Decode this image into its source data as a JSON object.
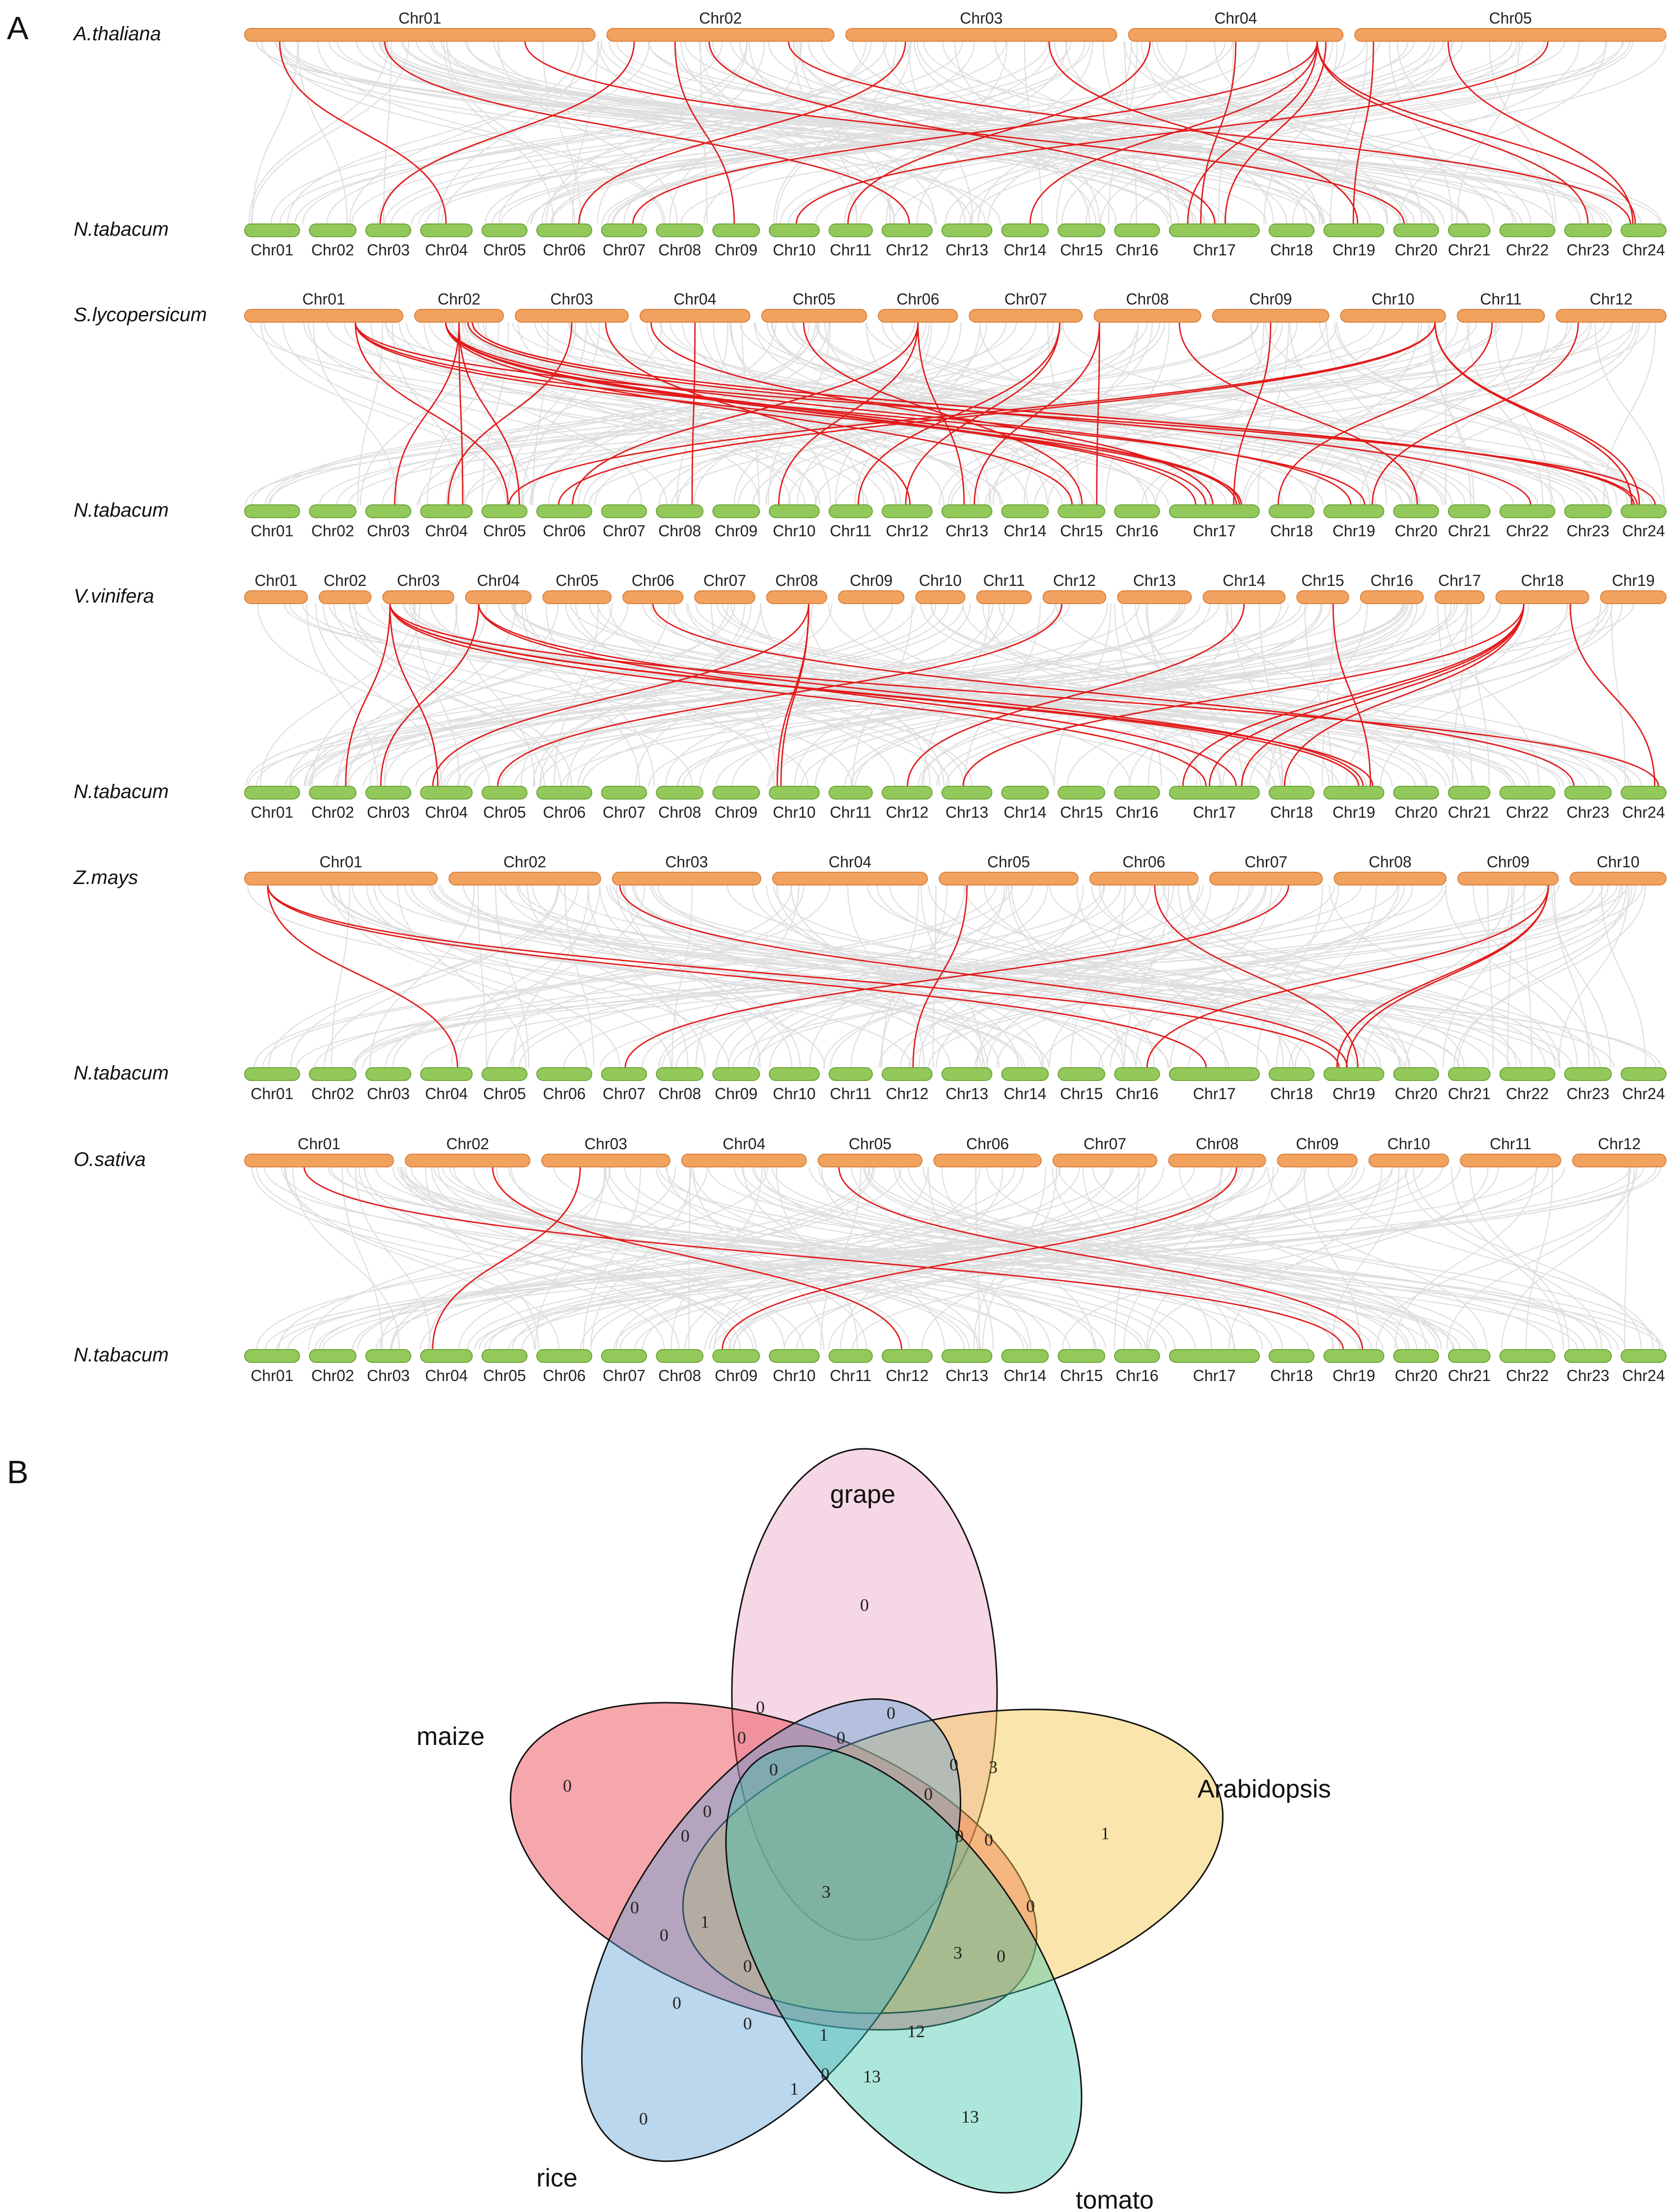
{
  "panel_a": {
    "letter": "A",
    "target_species": "N.tabacum",
    "target_chromosomes": [
      "Chr01",
      "Chr02",
      "Chr03",
      "Chr04",
      "Chr05",
      "Chr06",
      "Chr07",
      "Chr08",
      "Chr09",
      "Chr10",
      "Chr11",
      "Chr12",
      "Chr13",
      "Chr14",
      "Chr15",
      "Chr16",
      "Chr17",
      "Chr18",
      "Chr19",
      "Chr20",
      "Chr21",
      "Chr22",
      "Chr23",
      "Chr24"
    ],
    "target_rel_lengths": [
      3.3,
      2.8,
      2.7,
      3.1,
      2.7,
      3.3,
      2.7,
      2.8,
      2.8,
      3.0,
      2.6,
      3.0,
      3.0,
      2.8,
      2.8,
      2.7,
      5.4,
      2.7,
      3.6,
      2.7,
      2.5,
      3.3,
      2.8,
      2.7
    ],
    "rows": [
      {
        "species": "A.thaliana",
        "chromosomes": [
          "Chr01",
          "Chr02",
          "Chr03",
          "Chr04",
          "Chr05"
        ],
        "rel_lengths": [
          30.4,
          19.7,
          23.5,
          18.6,
          27.0
        ],
        "links": [
          [
            0,
            0.1,
            3
          ],
          [
            0,
            0.4,
            11
          ],
          [
            0,
            0.8,
            19
          ],
          [
            1,
            0.12,
            2
          ],
          [
            1,
            0.3,
            8
          ],
          [
            1,
            0.45,
            16
          ],
          [
            1,
            0.8,
            23
          ],
          [
            2,
            0.22,
            5
          ],
          [
            2,
            0.75,
            18
          ],
          [
            3,
            0.1,
            10
          ],
          [
            3,
            0.5,
            16
          ],
          [
            3,
            0.88,
            6
          ],
          [
            3,
            0.88,
            13
          ],
          [
            3,
            0.88,
            16
          ],
          [
            3,
            0.88,
            22
          ],
          [
            3,
            0.88,
            23
          ],
          [
            3,
            0.92,
            16
          ],
          [
            4,
            0.3,
            23
          ],
          [
            4,
            0.62,
            9
          ],
          [
            4,
            0.06,
            18
          ]
        ]
      },
      {
        "species": "S.lycopersicum",
        "chromosomes": [
          "Chr01",
          "Chr02",
          "Chr03",
          "Chr04",
          "Chr05",
          "Chr06",
          "Chr07",
          "Chr08",
          "Chr09",
          "Chr10",
          "Chr11",
          "Chr12"
        ],
        "rel_lengths": [
          98,
          55,
          70,
          68,
          65,
          49,
          70,
          66,
          72,
          65,
          54,
          68
        ],
        "links": [
          [
            0,
            0.7,
            16
          ],
          [
            0,
            0.7,
            18
          ],
          [
            0,
            0.7,
            23
          ],
          [
            0,
            0.7,
            4
          ],
          [
            1,
            0.35,
            16
          ],
          [
            1,
            0.35,
            16
          ],
          [
            1,
            0.35,
            16
          ],
          [
            1,
            0.35,
            16
          ],
          [
            1,
            0.35,
            18
          ],
          [
            1,
            0.35,
            14
          ],
          [
            1,
            0.5,
            2
          ],
          [
            1,
            0.5,
            3
          ],
          [
            1,
            0.5,
            4
          ],
          [
            1,
            0.65,
            23
          ],
          [
            1,
            0.65,
            23
          ],
          [
            1,
            0.6,
            21
          ],
          [
            2,
            0.5,
            3
          ],
          [
            2,
            0.8,
            11
          ],
          [
            3,
            0.1,
            16
          ],
          [
            3,
            0.5,
            7
          ],
          [
            4,
            0.4,
            14
          ],
          [
            5,
            0.5,
            9
          ],
          [
            5,
            0.5,
            5
          ],
          [
            5,
            0.5,
            12
          ],
          [
            6,
            0.8,
            10
          ],
          [
            6,
            0.8,
            11
          ],
          [
            7,
            0.05,
            12
          ],
          [
            7,
            0.05,
            14
          ],
          [
            7,
            0.8,
            19
          ],
          [
            8,
            0.5,
            16
          ],
          [
            9,
            0.9,
            23
          ],
          [
            9,
            0.9,
            23
          ],
          [
            9,
            0.9,
            23
          ],
          [
            9,
            0.9,
            4
          ],
          [
            9,
            0.9,
            5
          ],
          [
            10,
            0.4,
            17
          ],
          [
            11,
            0.2,
            18
          ]
        ]
      },
      {
        "species": "V.vinifera",
        "chromosomes": [
          "Chr01",
          "Chr02",
          "Chr03",
          "Chr04",
          "Chr05",
          "Chr06",
          "Chr07",
          "Chr08",
          "Chr09",
          "Chr10",
          "Chr11",
          "Chr12",
          "Chr13",
          "Chr14",
          "Chr15",
          "Chr16",
          "Chr17",
          "Chr18",
          "Chr19"
        ],
        "rel_lengths": [
          23,
          19,
          26,
          24,
          25,
          22,
          22,
          22,
          24,
          18,
          20,
          23,
          27,
          30,
          19,
          23,
          18,
          34,
          24
        ],
        "links": [
          [
            2,
            0.1,
            16
          ],
          [
            2,
            0.1,
            18
          ],
          [
            2,
            0.1,
            18
          ],
          [
            2,
            0.1,
            23
          ],
          [
            2,
            0.1,
            3
          ],
          [
            2,
            0.1,
            1
          ],
          [
            3,
            0.2,
            18
          ],
          [
            3,
            0.2,
            16
          ],
          [
            3,
            0.2,
            2
          ],
          [
            7,
            0.7,
            9
          ],
          [
            7,
            0.7,
            3
          ],
          [
            7,
            0.7,
            9
          ],
          [
            11,
            0.3,
            4
          ],
          [
            13,
            0.5,
            11
          ],
          [
            14,
            0.7,
            18
          ],
          [
            17,
            0.3,
            16
          ],
          [
            17,
            0.3,
            16
          ],
          [
            17,
            0.3,
            16
          ],
          [
            17,
            0.3,
            12
          ],
          [
            17,
            0.3,
            17
          ],
          [
            17,
            0.8,
            23
          ],
          [
            5,
            0.5,
            22
          ]
        ]
      },
      {
        "species": "Z.mays",
        "chromosomes": [
          "Chr01",
          "Chr02",
          "Chr03",
          "Chr04",
          "Chr05",
          "Chr06",
          "Chr07",
          "Chr08",
          "Chr09",
          "Chr10"
        ],
        "rel_lengths": [
          301,
          237,
          232,
          242,
          217,
          169,
          176,
          175,
          157,
          150
        ],
        "links": [
          [
            0,
            0.12,
            3
          ],
          [
            0,
            0.12,
            18
          ],
          [
            0,
            0.12,
            16
          ],
          [
            2,
            0.05,
            18
          ],
          [
            4,
            0.2,
            11
          ],
          [
            5,
            0.6,
            18
          ],
          [
            6,
            0.7,
            6
          ],
          [
            8,
            0.9,
            18
          ],
          [
            8,
            0.9,
            18
          ],
          [
            8,
            0.9,
            15
          ]
        ]
      },
      {
        "species": "O.sativa",
        "chromosomes": [
          "Chr01",
          "Chr02",
          "Chr03",
          "Chr04",
          "Chr05",
          "Chr06",
          "Chr07",
          "Chr08",
          "Chr09",
          "Chr10",
          "Chr11",
          "Chr12"
        ],
        "rel_lengths": [
          43,
          36,
          37,
          36,
          30,
          31,
          30,
          28,
          23,
          23,
          29,
          27
        ],
        "links": [
          [
            0,
            0.4,
            18
          ],
          [
            1,
            0.7,
            11
          ],
          [
            2,
            0.3,
            3
          ],
          [
            4,
            0.2,
            18
          ],
          [
            7,
            0.7,
            8
          ]
        ]
      }
    ]
  },
  "panel_b": {
    "letter": "B",
    "sets": [
      "grape",
      "maize",
      "Arabidopsis",
      "rice",
      "tomato"
    ],
    "numbers": [
      "0",
      "0",
      "0",
      "0",
      "3",
      "0",
      "0",
      "0",
      "0",
      "1",
      "0",
      "0",
      "0",
      "3",
      "0",
      "0",
      "0",
      "0",
      "0",
      "1",
      "0",
      "0",
      "3",
      "0",
      "12",
      "1",
      "0",
      "0",
      "13",
      "1",
      "0",
      "13"
    ]
  }
}
